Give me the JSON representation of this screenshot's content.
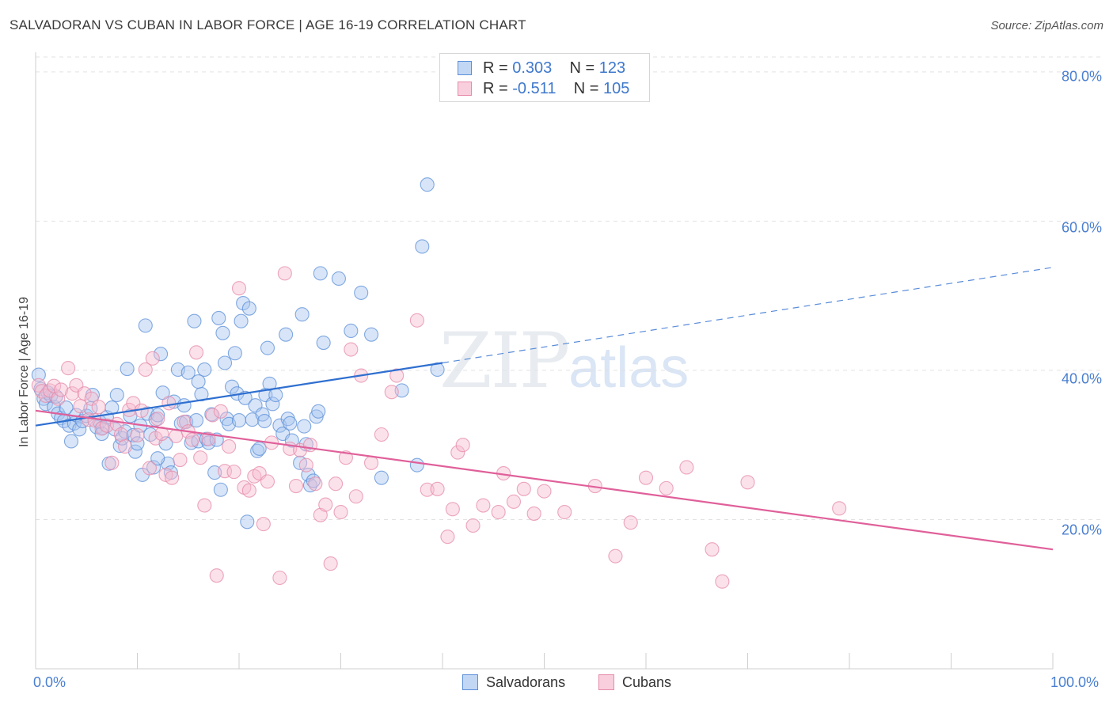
{
  "header": {
    "title": "SALVADORAN VS CUBAN IN LABOR FORCE | AGE 16-19 CORRELATION CHART",
    "source": "Source: ZipAtlas.com"
  },
  "watermark": {
    "zip": "ZIP",
    "atlas": "atlas"
  },
  "legend": {
    "rows": [
      {
        "r_key": "R = ",
        "r_val": "0.303",
        "n_key": "N = ",
        "n_val": "123"
      },
      {
        "r_key": "R = ",
        "r_val": "-0.511",
        "n_key": "N = ",
        "n_val": "105"
      }
    ]
  },
  "colors": {
    "salvadorans_fill": "#a9c6f0",
    "salvadorans_stroke": "#5b8fd8",
    "salvadorans_line": "#2f6fd0",
    "cubans_fill": "#f7bcd0",
    "cubans_stroke": "#e68aaa",
    "cubans_line": "#e0609a",
    "tick_label": "#4a7fd0"
  },
  "chart_data": {
    "type": "scatter",
    "title": "SALVADORAN VS CUBAN IN LABOR FORCE | AGE 16-19 CORRELATION CHART",
    "xlabel": "",
    "ylabel": "In Labor Force | Age 16-19",
    "xlim": [
      0,
      100
    ],
    "ylim": [
      0,
      82
    ],
    "x_tick_labels": [
      "0.0%",
      "100.0%"
    ],
    "y_ticks": [
      20,
      40,
      60,
      80
    ],
    "y_tick_labels": [
      "20.0%",
      "40.0%",
      "60.0%",
      "80.0%"
    ],
    "grid": true,
    "legend_position": "top-center",
    "series": [
      {
        "name": "Salvadorans",
        "r": 0.303,
        "n": 123,
        "trend": {
          "x0": 0,
          "y0": 32.6,
          "x1": 40,
          "y1": 41.0,
          "dashed_to_x": 100,
          "dashed_to_y": 53.8
        },
        "points": [
          [
            0.3,
            39.4
          ],
          [
            0.5,
            37.5
          ],
          [
            0.8,
            36.2
          ],
          [
            1.0,
            35.5
          ],
          [
            1.2,
            37.0
          ],
          [
            1.5,
            36.6
          ],
          [
            1.8,
            35.1
          ],
          [
            2.0,
            36.5
          ],
          [
            2.2,
            34.2
          ],
          [
            2.5,
            33.6
          ],
          [
            2.8,
            33.2
          ],
          [
            3.0,
            35.0
          ],
          [
            3.3,
            32.6
          ],
          [
            3.5,
            30.5
          ],
          [
            3.8,
            32.9
          ],
          [
            4.0,
            34.0
          ],
          [
            4.3,
            32.1
          ],
          [
            4.6,
            33.2
          ],
          [
            5.0,
            33.9
          ],
          [
            5.4,
            34.9
          ],
          [
            5.6,
            36.7
          ],
          [
            6.0,
            32.4
          ],
          [
            6.3,
            33.1
          ],
          [
            6.6,
            32.3
          ],
          [
            7.0,
            33.7
          ],
          [
            7.2,
            27.5
          ],
          [
            7.5,
            35.0
          ],
          [
            7.8,
            32.1
          ],
          [
            8.0,
            36.7
          ],
          [
            8.3,
            29.9
          ],
          [
            8.5,
            30.9
          ],
          [
            8.8,
            31.8
          ],
          [
            9.0,
            40.2
          ],
          [
            9.3,
            33.9
          ],
          [
            9.6,
            31.3
          ],
          [
            9.8,
            29.1
          ],
          [
            10.0,
            30.2
          ],
          [
            10.3,
            32.6
          ],
          [
            10.5,
            26.0
          ],
          [
            10.8,
            46.0
          ],
          [
            11.0,
            34.2
          ],
          [
            11.3,
            31.4
          ],
          [
            11.6,
            27.0
          ],
          [
            11.8,
            33.4
          ],
          [
            12.0,
            34.0
          ],
          [
            12.3,
            42.2
          ],
          [
            12.5,
            37.0
          ],
          [
            12.8,
            30.2
          ],
          [
            13.0,
            27.5
          ],
          [
            13.3,
            26.3
          ],
          [
            13.6,
            35.8
          ],
          [
            14.0,
            40.1
          ],
          [
            14.3,
            32.9
          ],
          [
            14.6,
            35.3
          ],
          [
            14.8,
            33.1
          ],
          [
            15.0,
            39.7
          ],
          [
            15.3,
            30.3
          ],
          [
            15.6,
            46.6
          ],
          [
            15.8,
            33.3
          ],
          [
            16.0,
            30.5
          ],
          [
            16.3,
            36.8
          ],
          [
            16.6,
            40.1
          ],
          [
            16.8,
            30.8
          ],
          [
            17.0,
            30.3
          ],
          [
            17.3,
            34.1
          ],
          [
            17.6,
            26.3
          ],
          [
            17.8,
            30.7
          ],
          [
            18.0,
            47.0
          ],
          [
            18.2,
            24.0
          ],
          [
            18.4,
            45.0
          ],
          [
            18.6,
            41.0
          ],
          [
            18.8,
            33.5
          ],
          [
            19.0,
            32.8
          ],
          [
            19.3,
            37.8
          ],
          [
            19.6,
            42.3
          ],
          [
            19.8,
            36.9
          ],
          [
            20.0,
            33.3
          ],
          [
            20.2,
            46.6
          ],
          [
            20.4,
            49.0
          ],
          [
            20.6,
            36.3
          ],
          [
            20.8,
            19.7
          ],
          [
            21.0,
            48.3
          ],
          [
            21.3,
            33.4
          ],
          [
            21.6,
            35.3
          ],
          [
            21.8,
            29.2
          ],
          [
            22.0,
            29.5
          ],
          [
            22.3,
            34.1
          ],
          [
            22.6,
            36.7
          ],
          [
            22.8,
            43.0
          ],
          [
            23.0,
            38.2
          ],
          [
            23.3,
            35.5
          ],
          [
            23.6,
            36.7
          ],
          [
            24.0,
            32.6
          ],
          [
            24.3,
            31.5
          ],
          [
            24.6,
            44.8
          ],
          [
            24.8,
            33.5
          ],
          [
            25.0,
            32.9
          ],
          [
            25.2,
            30.6
          ],
          [
            26.0,
            27.6
          ],
          [
            26.2,
            47.5
          ],
          [
            26.4,
            32.5
          ],
          [
            26.6,
            30.1
          ],
          [
            26.8,
            26.0
          ],
          [
            27.0,
            24.6
          ],
          [
            27.3,
            25.2
          ],
          [
            27.6,
            33.8
          ],
          [
            27.8,
            34.5
          ],
          [
            28.0,
            53.0
          ],
          [
            28.3,
            43.7
          ],
          [
            29.8,
            52.3
          ],
          [
            31.0,
            45.3
          ],
          [
            32.0,
            50.4
          ],
          [
            33.0,
            44.8
          ],
          [
            34.0,
            25.6
          ],
          [
            36.0,
            37.3
          ],
          [
            37.5,
            27.3
          ],
          [
            38.0,
            56.6
          ],
          [
            38.5,
            64.9
          ],
          [
            39.5,
            40.1
          ],
          [
            16.0,
            38.5
          ],
          [
            22.5,
            33.2
          ],
          [
            12.0,
            28.2
          ],
          [
            6.5,
            31.5
          ]
        ]
      },
      {
        "name": "Cubans",
        "r": -0.511,
        "n": 105,
        "trend": {
          "x0": 0,
          "y0": 34.6,
          "x1": 100,
          "y1": 16.0
        },
        "points": [
          [
            0.3,
            38.0
          ],
          [
            0.6,
            37.2
          ],
          [
            1.0,
            36.6
          ],
          [
            1.4,
            37.3
          ],
          [
            1.8,
            37.9
          ],
          [
            2.2,
            36.2
          ],
          [
            2.5,
            37.4
          ],
          [
            3.2,
            40.3
          ],
          [
            3.6,
            36.9
          ],
          [
            4.0,
            38.0
          ],
          [
            4.4,
            35.2
          ],
          [
            4.8,
            36.9
          ],
          [
            5.2,
            33.4
          ],
          [
            5.5,
            36.2
          ],
          [
            5.8,
            33.3
          ],
          [
            6.2,
            35.1
          ],
          [
            6.5,
            32.2
          ],
          [
            7.0,
            32.6
          ],
          [
            7.5,
            27.6
          ],
          [
            8.0,
            32.8
          ],
          [
            8.4,
            31.4
          ],
          [
            8.8,
            29.8
          ],
          [
            9.2,
            34.7
          ],
          [
            9.6,
            35.6
          ],
          [
            10.0,
            31.3
          ],
          [
            10.4,
            34.6
          ],
          [
            10.8,
            40.1
          ],
          [
            11.2,
            26.9
          ],
          [
            11.5,
            41.6
          ],
          [
            11.8,
            30.9
          ],
          [
            12.0,
            33.5
          ],
          [
            12.4,
            31.5
          ],
          [
            12.8,
            26.0
          ],
          [
            13.1,
            35.6
          ],
          [
            13.4,
            25.6
          ],
          [
            13.8,
            31.2
          ],
          [
            14.2,
            28.0
          ],
          [
            14.6,
            33.1
          ],
          [
            15.0,
            31.8
          ],
          [
            15.4,
            30.7
          ],
          [
            15.8,
            42.4
          ],
          [
            16.2,
            28.3
          ],
          [
            16.6,
            21.9
          ],
          [
            17.0,
            30.8
          ],
          [
            17.4,
            34.0
          ],
          [
            17.8,
            12.5
          ],
          [
            18.2,
            34.5
          ],
          [
            18.6,
            26.5
          ],
          [
            19.0,
            29.8
          ],
          [
            19.5,
            26.4
          ],
          [
            20.0,
            51.0
          ],
          [
            20.5,
            24.3
          ],
          [
            21.0,
            23.9
          ],
          [
            21.5,
            25.8
          ],
          [
            22.0,
            26.2
          ],
          [
            22.4,
            19.4
          ],
          [
            22.8,
            25.1
          ],
          [
            23.2,
            30.3
          ],
          [
            24.0,
            12.2
          ],
          [
            24.5,
            53.0
          ],
          [
            25.0,
            29.5
          ],
          [
            25.6,
            24.5
          ],
          [
            26.0,
            29.3
          ],
          [
            26.6,
            27.3
          ],
          [
            27.0,
            30.0
          ],
          [
            27.5,
            24.8
          ],
          [
            28.0,
            20.6
          ],
          [
            28.5,
            22.0
          ],
          [
            29.0,
            14.1
          ],
          [
            29.5,
            24.8
          ],
          [
            30.0,
            21.0
          ],
          [
            30.5,
            28.3
          ],
          [
            31.0,
            42.8
          ],
          [
            31.5,
            23.1
          ],
          [
            32.0,
            39.3
          ],
          [
            33.0,
            27.6
          ],
          [
            34.0,
            31.4
          ],
          [
            35.0,
            37.1
          ],
          [
            35.5,
            39.3
          ],
          [
            37.5,
            46.7
          ],
          [
            38.5,
            24.0
          ],
          [
            39.5,
            24.1
          ],
          [
            40.5,
            17.7
          ],
          [
            41.0,
            21.4
          ],
          [
            41.5,
            29.0
          ],
          [
            42.0,
            30.0
          ],
          [
            43.0,
            19.2
          ],
          [
            44.0,
            21.9
          ],
          [
            45.5,
            21.0
          ],
          [
            46.0,
            26.2
          ],
          [
            47.0,
            22.4
          ],
          [
            48.0,
            24.1
          ],
          [
            49.0,
            20.8
          ],
          [
            50.0,
            23.8
          ],
          [
            52.0,
            21.0
          ],
          [
            55.0,
            24.5
          ],
          [
            57.0,
            15.1
          ],
          [
            58.5,
            19.6
          ],
          [
            60.0,
            25.6
          ],
          [
            62.0,
            24.2
          ],
          [
            64.0,
            27.0
          ],
          [
            66.5,
            16.0
          ],
          [
            67.5,
            11.7
          ],
          [
            70.0,
            25.0
          ],
          [
            79.0,
            21.5
          ]
        ]
      }
    ]
  },
  "bottom_legend": {
    "salvadorans": "Salvadorans",
    "cubans": "Cubans"
  }
}
